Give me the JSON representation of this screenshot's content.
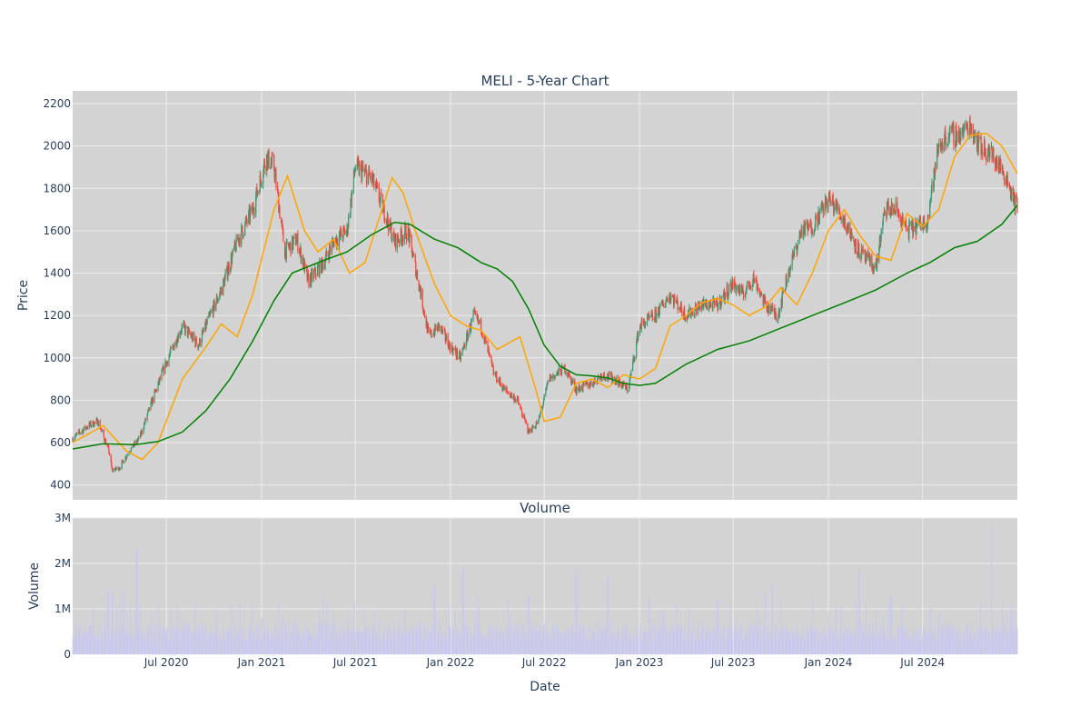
{
  "chart_data": [
    {
      "type": "candlestick",
      "title": "MELI - 5-Year Chart",
      "ylabel": "Price",
      "ylim": [
        330,
        2260
      ],
      "yticks": [
        400,
        600,
        800,
        1000,
        1200,
        1400,
        1600,
        1800,
        2000,
        2200
      ],
      "grid": true,
      "colors": {
        "up": "#3d9970",
        "down": "#ff4136",
        "sma_short": "#ffa500",
        "sma_long": "#008000",
        "plot_bg": "#d3d3d3",
        "grid": "#ececec"
      },
      "series": [
        {
          "values_type": "close",
          "x": [
            "2020-01-02",
            "2020-02-01",
            "2020-02-20",
            "2020-03-12",
            "2020-03-18",
            "2020-04-01",
            "2020-04-20",
            "2020-05-10",
            "2020-06-01",
            "2020-07-01",
            "2020-08-01",
            "2020-09-01",
            "2020-09-20",
            "2020-10-15",
            "2020-11-15",
            "2020-12-15",
            "2021-01-10",
            "2021-01-25",
            "2021-02-15",
            "2021-03-10",
            "2021-04-01",
            "2021-05-01",
            "2021-05-20",
            "2021-06-15",
            "2021-07-01",
            "2021-08-01",
            "2021-08-25",
            "2021-09-15",
            "2021-10-10",
            "2021-11-01",
            "2021-11-20",
            "2021-12-10",
            "2022-01-01",
            "2022-01-20",
            "2022-02-15",
            "2022-03-01",
            "2022-03-25",
            "2022-04-15",
            "2022-05-10",
            "2022-06-01",
            "2022-06-20",
            "2022-07-10",
            "2022-08-10",
            "2022-09-01",
            "2022-10-01",
            "2022-10-20",
            "2022-11-15",
            "2022-12-10",
            "2023-01-01",
            "2023-02-01",
            "2023-03-01",
            "2023-04-01",
            "2023-05-01",
            "2023-06-01",
            "2023-07-01",
            "2023-07-20",
            "2023-08-10",
            "2023-09-01",
            "2023-09-25",
            "2023-10-15",
            "2023-11-10",
            "2023-12-01",
            "2024-01-01",
            "2024-01-20",
            "2024-02-10",
            "2024-03-01",
            "2024-04-01",
            "2024-04-20",
            "2024-05-10",
            "2024-06-01",
            "2024-06-20",
            "2024-07-10",
            "2024-08-01",
            "2024-08-20",
            "2024-09-10",
            "2024-10-01",
            "2024-10-20",
            "2024-11-15",
            "2024-12-10",
            "2024-12-31"
          ],
          "values": [
            620,
            680,
            700,
            560,
            470,
            480,
            560,
            620,
            780,
            980,
            1150,
            1060,
            1180,
            1320,
            1550,
            1700,
            1950,
            1900,
            1500,
            1560,
            1360,
            1450,
            1550,
            1600,
            1900,
            1850,
            1700,
            1550,
            1600,
            1350,
            1100,
            1150,
            1050,
            1000,
            1200,
            1150,
            930,
            850,
            800,
            650,
            700,
            900,
            950,
            850,
            880,
            920,
            900,
            850,
            1150,
            1200,
            1300,
            1200,
            1250,
            1250,
            1350,
            1300,
            1380,
            1250,
            1200,
            1400,
            1600,
            1620,
            1750,
            1700,
            1600,
            1500,
            1420,
            1700,
            1700,
            1600,
            1620,
            1650,
            2000,
            2050,
            2050,
            2100,
            2000,
            1950,
            1850,
            1700
          ]
        },
        {
          "name": "",
          "type": "line",
          "x": [
            "2020-01-02",
            "2020-02-01",
            "2020-03-01",
            "2020-04-15",
            "2020-05-15",
            "2020-06-15",
            "2020-08-01",
            "2020-09-15",
            "2020-10-15",
            "2020-11-15",
            "2020-12-15",
            "2021-01-25",
            "2021-02-20",
            "2021-03-25",
            "2021-04-20",
            "2021-05-20",
            "2021-06-20",
            "2021-07-20",
            "2021-08-15",
            "2021-09-10",
            "2021-10-01",
            "2021-10-25",
            "2021-12-01",
            "2022-01-01",
            "2022-02-01",
            "2022-03-01",
            "2022-04-01",
            "2022-05-15",
            "2022-06-15",
            "2022-07-01",
            "2022-08-01",
            "2022-09-01",
            "2022-10-01",
            "2022-11-01",
            "2022-12-01",
            "2023-01-01",
            "2023-02-01",
            "2023-03-01",
            "2023-04-01",
            "2023-05-01",
            "2023-06-01",
            "2023-07-01",
            "2023-08-01",
            "2023-09-01",
            "2023-10-01",
            "2023-11-01",
            "2023-12-01",
            "2024-01-01",
            "2024-02-01",
            "2024-03-01",
            "2024-04-01",
            "2024-05-01",
            "2024-06-01",
            "2024-07-01",
            "2024-08-01",
            "2024-09-01",
            "2024-10-01",
            "2024-11-01",
            "2024-12-01",
            "2024-12-31"
          ],
          "values": [
            600,
            640,
            680,
            560,
            520,
            600,
            900,
            1050,
            1160,
            1100,
            1300,
            1700,
            1860,
            1600,
            1500,
            1560,
            1400,
            1450,
            1650,
            1850,
            1780,
            1600,
            1350,
            1200,
            1150,
            1130,
            1040,
            1100,
            850,
            700,
            720,
            880,
            900,
            860,
            920,
            900,
            950,
            1150,
            1200,
            1260,
            1280,
            1250,
            1200,
            1240,
            1330,
            1250,
            1400,
            1600,
            1700,
            1580,
            1480,
            1460,
            1680,
            1620,
            1700,
            1950,
            2050,
            2060,
            2000,
            1870
          ]
        },
        {
          "name": "",
          "type": "line",
          "x": [
            "2020-01-02",
            "2020-03-01",
            "2020-05-01",
            "2020-06-15",
            "2020-08-01",
            "2020-09-15",
            "2020-11-01",
            "2020-12-15",
            "2021-01-25",
            "2021-03-01",
            "2021-05-01",
            "2021-06-15",
            "2021-08-01",
            "2021-09-15",
            "2021-10-15",
            "2021-12-01",
            "2022-01-15",
            "2022-03-01",
            "2022-04-01",
            "2022-05-01",
            "2022-06-01",
            "2022-07-01",
            "2022-08-01",
            "2022-09-01",
            "2022-10-01",
            "2022-11-01",
            "2022-12-01",
            "2023-01-01",
            "2023-02-01",
            "2023-04-01",
            "2023-06-01",
            "2023-08-01",
            "2023-10-01",
            "2023-12-01",
            "2024-02-01",
            "2024-04-01",
            "2024-06-01",
            "2024-07-15",
            "2024-09-01",
            "2024-10-15",
            "2024-12-01",
            "2024-12-31"
          ],
          "values": [
            570,
            595,
            590,
            605,
            650,
            750,
            900,
            1080,
            1270,
            1400,
            1460,
            1500,
            1580,
            1640,
            1630,
            1560,
            1520,
            1450,
            1420,
            1360,
            1230,
            1060,
            960,
            920,
            915,
            905,
            880,
            870,
            880,
            970,
            1040,
            1080,
            1140,
            1200,
            1260,
            1320,
            1400,
            1450,
            1520,
            1550,
            1630,
            1720
          ]
        }
      ]
    },
    {
      "type": "bar",
      "title": "Volume",
      "xlabel": "Date",
      "ylabel": "Volume",
      "ylim": [
        0,
        3000000
      ],
      "yticks": [
        0,
        1000000,
        2000000,
        3000000
      ],
      "ytick_labels": [
        "0",
        "1M",
        "2M",
        "3M"
      ],
      "xticks": [
        "2020-07-01",
        "2021-01-01",
        "2021-07-01",
        "2022-01-01",
        "2022-07-01",
        "2023-01-01",
        "2023-07-01",
        "2024-01-01",
        "2024-07-01"
      ],
      "xtick_labels": [
        "Jul 2020",
        "Jan 2021",
        "Jul 2021",
        "Jan 2022",
        "Jul 2022",
        "Jan 2023",
        "Jul 2023",
        "Jan 2024",
        "Jul 2024"
      ],
      "xlim": [
        "2020-01-02",
        "2024-12-31"
      ],
      "colors": {
        "bar": "#c8c8f0"
      },
      "peaks": {
        "x": [
          "2020-02-10",
          "2020-03-10",
          "2020-03-20",
          "2020-04-05",
          "2020-05-05",
          "2021-05-01",
          "2021-12-01",
          "2022-01-25",
          "2022-02-20",
          "2022-06-01",
          "2022-09-01",
          "2022-11-01",
          "2023-01-20",
          "2023-06-01",
          "2023-09-01",
          "2023-09-15",
          "2023-10-01",
          "2024-01-15",
          "2024-03-01",
          "2024-05-01",
          "2024-07-15",
          "2024-11-10",
          "2024-12-01",
          "2024-12-20"
        ],
        "values": [
          1000000,
          1400000,
          1350000,
          1400000,
          2300000,
          1250000,
          1500000,
          1900000,
          1300000,
          1300000,
          1800000,
          1700000,
          1200000,
          1200000,
          1350000,
          1500000,
          1200000,
          1000000,
          1850000,
          1300000,
          1000000,
          2950000,
          1100000,
          900000
        ]
      }
    }
  ]
}
